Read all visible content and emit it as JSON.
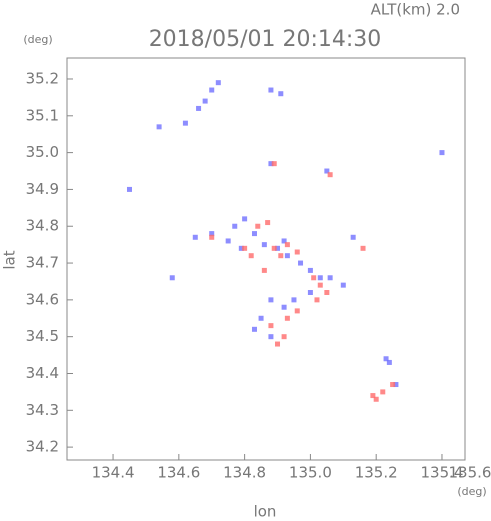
{
  "chart_data": {
    "type": "scatter",
    "title": "2018/05/01 20:14:30",
    "subtitle": "ALT(km) 2.0",
    "x_label": "lon",
    "y_label": "lat",
    "x_unit": "(deg)",
    "y_unit": "(deg)",
    "xlim": [
      134.26,
      135.47
    ],
    "ylim": [
      34.165,
      35.257
    ],
    "xticks": [
      134.4,
      134.6,
      134.8,
      {
        "value": 135,
        "label": "135.0"
      },
      135.2,
      135.4,
      135.6
    ],
    "yticks": [
      34.2,
      34.3,
      34.4,
      34.5,
      34.6,
      34.7,
      34.8,
      34.9,
      {
        "value": 35,
        "label": "35.0"
      },
      35.1,
      35.2
    ],
    "series": [
      {
        "color": "#7070ff",
        "x": [
          134.54,
          134.62,
          134.66,
          134.68,
          134.7,
          134.72,
          134.88,
          134.91,
          134.88,
          135.05,
          135.4,
          134.45,
          134.65,
          134.7,
          134.75,
          134.77,
          134.8,
          134.83,
          134.86,
          134.9,
          134.93,
          134.97,
          135,
          135.03,
          135.06,
          135.1,
          134.58,
          134.88,
          134.92,
          134.95,
          134.85,
          134.88,
          134.83,
          135,
          135.23,
          135.24,
          135.26,
          135.13,
          134.92,
          134.79
        ],
        "values": [
          35.07,
          35.08,
          35.12,
          35.14,
          35.17,
          35.19,
          35.17,
          35.16,
          34.97,
          34.95,
          35,
          34.9,
          34.77,
          34.78,
          34.76,
          34.8,
          34.82,
          34.78,
          34.75,
          34.74,
          34.72,
          34.7,
          34.68,
          34.66,
          34.66,
          34.64,
          34.66,
          34.6,
          34.58,
          34.6,
          34.55,
          34.5,
          34.52,
          34.62,
          34.44,
          34.43,
          34.37,
          34.77,
          34.76,
          34.74
        ]
      },
      {
        "color": "#ff6b6b",
        "x": [
          134.89,
          135.06,
          134.7,
          134.8,
          134.82,
          134.84,
          134.89,
          134.91,
          134.93,
          134.96,
          135.01,
          135.03,
          135.05,
          135.02,
          134.96,
          134.93,
          134.88,
          134.9,
          134.92,
          134.86,
          135.16,
          135.19,
          135.2,
          135.22,
          135.25,
          134.87
        ],
        "values": [
          34.97,
          34.94,
          34.77,
          34.74,
          34.72,
          34.8,
          34.74,
          34.72,
          34.75,
          34.73,
          34.66,
          34.64,
          34.62,
          34.6,
          34.57,
          34.55,
          34.53,
          34.48,
          34.5,
          34.68,
          34.74,
          34.34,
          34.33,
          34.35,
          34.37,
          34.81
        ]
      }
    ]
  }
}
